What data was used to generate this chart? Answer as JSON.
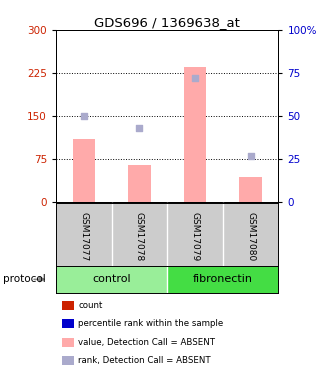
{
  "title": "GDS696 / 1369638_at",
  "samples": [
    "GSM17077",
    "GSM17078",
    "GSM17079",
    "GSM17080"
  ],
  "bar_values": [
    110,
    65,
    235,
    45
  ],
  "rank_values": [
    50,
    43,
    72,
    27
  ],
  "bar_color": "#ffaaaa",
  "rank_color": "#aaaacc",
  "left_yticks": [
    0,
    75,
    150,
    225,
    300
  ],
  "right_yticks": [
    0,
    25,
    50,
    75,
    100
  ],
  "right_yticklabels": [
    "0",
    "25",
    "50",
    "75",
    "100%"
  ],
  "left_color": "#cc2200",
  "right_color": "#0000cc",
  "control_color": "#99ee99",
  "fibronectin_color": "#44dd44",
  "gray_color": "#cccccc",
  "legend_items": [
    {
      "label": "count",
      "color": "#cc2200"
    },
    {
      "label": "percentile rank within the sample",
      "color": "#0000cc"
    },
    {
      "label": "value, Detection Call = ABSENT",
      "color": "#ffaaaa"
    },
    {
      "label": "rank, Detection Call = ABSENT",
      "color": "#aaaacc"
    }
  ],
  "protocol_label": "protocol",
  "group_label_control": "control",
  "group_label_fibronectin": "fibronectin",
  "background_color": "#ffffff"
}
